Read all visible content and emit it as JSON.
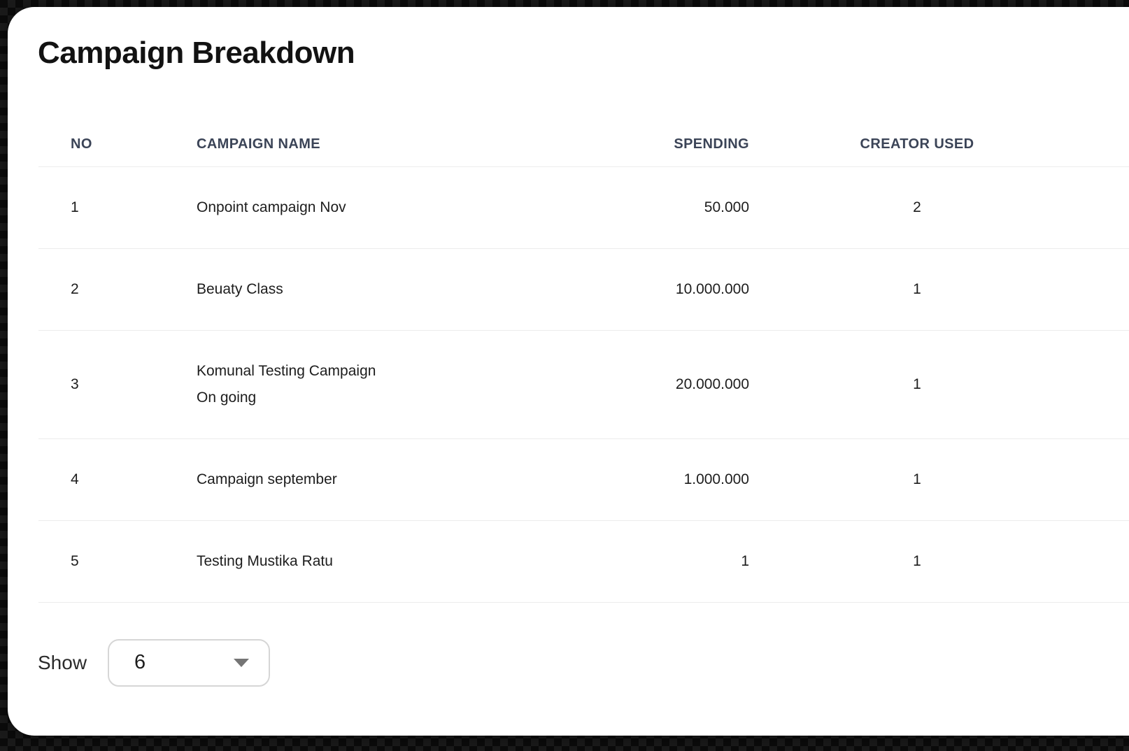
{
  "card": {
    "title": "Campaign Breakdown"
  },
  "table": {
    "columns": [
      {
        "key": "no",
        "label": "NO",
        "align": "left"
      },
      {
        "key": "name",
        "label": "CAMPAIGN NAME",
        "align": "left"
      },
      {
        "key": "spending",
        "label": "SPENDING",
        "align": "right"
      },
      {
        "key": "creators",
        "label": "CREATOR USED",
        "align": "center"
      }
    ],
    "rows": [
      {
        "no": "1",
        "name": "Onpoint campaign Nov",
        "spending": "50.000",
        "creators": "2"
      },
      {
        "no": "2",
        "name": "Beuaty Class",
        "spending": "10.000.000",
        "creators": "1"
      },
      {
        "no": "3",
        "name": "Komunal Testing Campaign",
        "name_line2": "On going",
        "spending": "20.000.000",
        "creators": "1"
      },
      {
        "no": "4",
        "name": "Campaign september",
        "spending": "1.000.000",
        "creators": "1"
      },
      {
        "no": "5",
        "name": "Testing Mustika Ratu",
        "spending": "1",
        "creators": "1"
      }
    ]
  },
  "footer": {
    "show_label": "Show",
    "page_size_value": "6",
    "dropdown_icon": "chevron-down-icon"
  },
  "colors": {
    "header_text": "#3b4457",
    "body_text": "#1d1d1d",
    "divider": "#ececec",
    "card_bg": "#ffffff",
    "page_bg": "#0b0b0b"
  }
}
